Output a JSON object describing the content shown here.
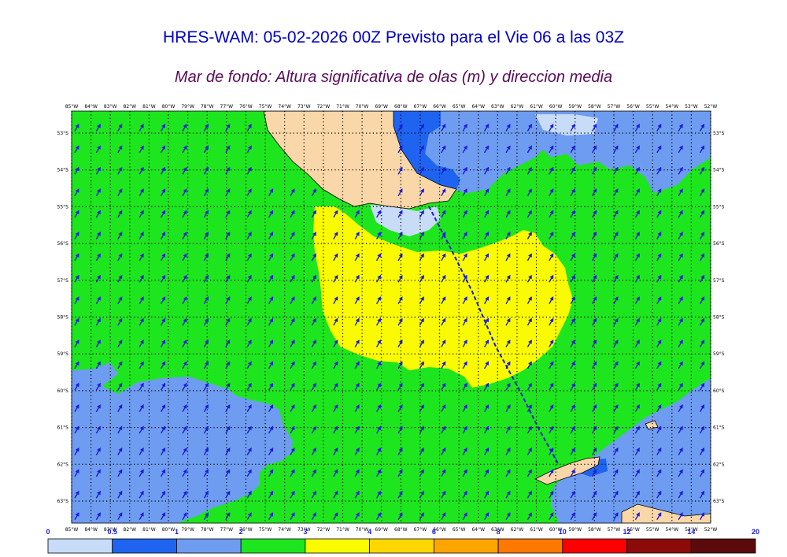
{
  "title": "HRES-WAM: 05-02-2026 00Z Previsto para el Vie 06 a las 03Z",
  "subtitle": "Mar de fondo: Altura significativa de olas (m) y direccion media",
  "map": {
    "lon_labels": [
      "85°W",
      "84°W",
      "83°W",
      "82°W",
      "81°W",
      "80°W",
      "79°W",
      "78°W",
      "77°W",
      "76°W",
      "75°W",
      "74°W",
      "73°W",
      "72°W",
      "71°W",
      "70°W",
      "69°W",
      "68°W",
      "67°W",
      "66°W",
      "65°W",
      "64°W",
      "63°W",
      "62°W",
      "61°W",
      "60°W",
      "59°W",
      "58°W",
      "57°W",
      "56°W",
      "55°W",
      "54°W",
      "53°W",
      "52°W"
    ],
    "lat_labels": [
      "53°S",
      "54°S",
      "55°S",
      "56°S",
      "57°S",
      "58°S",
      "59°S",
      "60°S",
      "61°S",
      "62°S",
      "63°S"
    ],
    "arrow_color": "#1a1adc",
    "region_colors": {
      "land": "#fad7a8",
      "wave_0_05": "#c8dcf8",
      "wave_05_1": "#1e64f0",
      "wave_1_2": "#6e9cf0",
      "wave_2_3": "#1ee61e",
      "wave_3_4": "#fafa00"
    }
  },
  "colorbar": {
    "ticks": [
      "0",
      "0.5",
      "1",
      "2",
      "3",
      "4",
      "6",
      "8",
      "10",
      "12",
      "14",
      "20"
    ],
    "colors": [
      "#c8dcf8",
      "#1e64f0",
      "#6e9cf0",
      "#1ee61e",
      "#fafa00",
      "#ffd700",
      "#ffa500",
      "#ff7800",
      "#ff0000",
      "#8c0a0a",
      "#5a0a0a"
    ]
  }
}
